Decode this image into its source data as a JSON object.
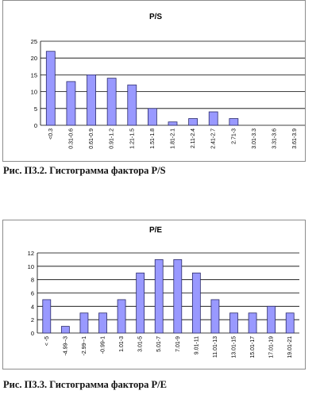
{
  "figures": [
    {
      "caption": "Рис. П3.2. Гистограмма фактора P/S",
      "chart_data": {
        "type": "bar",
        "title": "P/S",
        "categories": [
          "<0.3",
          "0.31-0.6",
          "0.61-0.9",
          "0.91-1.2",
          "1.21-1.5",
          "1.51-1.8",
          "1.81-2.1",
          "2.11-2.4",
          "2.41-2.7",
          "2.71-3",
          "3.01-3.3",
          "3.31-3.6",
          "3.61-3.9"
        ],
        "values": [
          22,
          13,
          15,
          14,
          12,
          5,
          1,
          2,
          4,
          2,
          0,
          0,
          0
        ],
        "y_ticks": [
          0,
          5,
          10,
          15,
          20,
          25
        ],
        "ylim": [
          0,
          25
        ],
        "grid": true,
        "colors": {
          "bar": "#9999ff",
          "bar_border": "#2b2b6b",
          "grid": "#000000"
        }
      }
    },
    {
      "caption": "Рис. П3.3. Гистограмма фактора P/E",
      "chart_data": {
        "type": "bar",
        "title": "P/E",
        "categories": [
          "< -5",
          "-4.99--3",
          "-2.99--1",
          "-0.99-1",
          "1.01-3",
          "3.01-5",
          "5.01-7",
          "7.01-9",
          "9.01-11",
          "11.01-13",
          "13.01-15",
          "15.01-17",
          "17.01-19",
          "19.01-21"
        ],
        "values": [
          5,
          1,
          3,
          3,
          5,
          9,
          11,
          11,
          9,
          5,
          3,
          3,
          4,
          3
        ],
        "y_ticks": [
          0,
          2,
          4,
          6,
          8,
          10,
          12
        ],
        "ylim": [
          0,
          12
        ],
        "grid": true,
        "colors": {
          "bar": "#9999ff",
          "bar_border": "#2b2b6b",
          "grid": "#000000"
        }
      }
    }
  ]
}
